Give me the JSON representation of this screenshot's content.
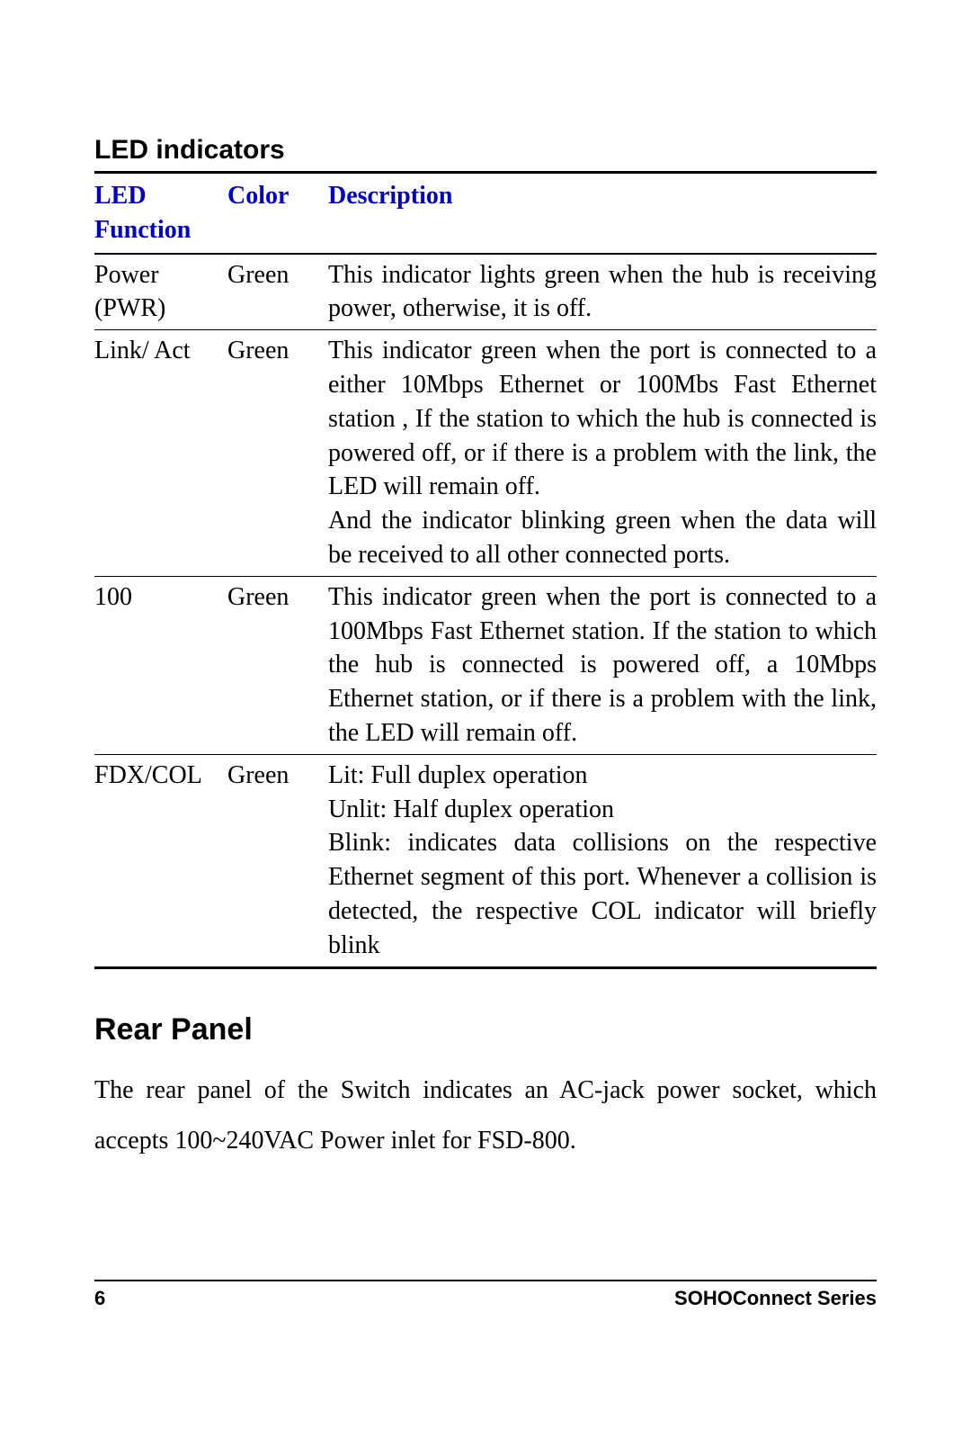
{
  "section": {
    "heading": "LED indicators",
    "table": {
      "header_color": "#0000c8",
      "columns": {
        "fn_label_line1": "LED",
        "fn_label_line2": "Function",
        "color_label": "Color",
        "desc_label": "Description"
      },
      "rows": [
        {
          "fn_line1": "Power",
          "fn_line2": "(PWR)",
          "color": "Green",
          "desc": "This indicator lights green when the hub is receiving power, otherwise, it is off."
        },
        {
          "fn_line1": "Link/ Act",
          "fn_line2": "",
          "color": "Green",
          "desc": "This indicator green when the port is connected to a either 10Mbps Ethernet or 100Mbs Fast Ethernet station , If the station to which the hub is connected is powered off, or if there is a problem with the link, the LED will remain off.\nAnd the indicator blinking green when the data will be received to all other connected ports."
        },
        {
          "fn_line1": "100",
          "fn_line2": "",
          "color": "Green",
          "desc": "This indicator green when the port is connected to a 100Mbps Fast Ethernet station. If the station to which the hub is connected is powered off, a 10Mbps Ethernet station, or if there is a problem with the link, the LED will remain off."
        },
        {
          "fn_line1": "FDX/COL",
          "fn_line2": "",
          "color": "Green",
          "desc": "Lit: Full duplex operation\nUnlit: Half duplex operation\nBlink: indicates data collisions on the respective  Ethernet segment of this port. Whenever a collision is detected, the respective COL indicator will briefly blink"
        }
      ]
    }
  },
  "rear": {
    "heading": "Rear Panel",
    "paragraph": "The rear panel of the Switch indicates an AC-jack power socket, which accepts 100~240VAC Power inlet for FSD-800."
  },
  "footer": {
    "page_number": "6",
    "series": "SOHOConnect Series"
  },
  "style": {
    "header_font": "Arial",
    "body_font": "Times New Roman",
    "heading_fontsize_pt": 22,
    "table_fontsize_pt": 21,
    "rear_heading_fontsize_pt": 26,
    "body_fontsize_pt": 21,
    "footer_fontsize_pt": 16,
    "text_color": "#000000",
    "background_color": "#ffffff",
    "rule_color": "#000000"
  }
}
